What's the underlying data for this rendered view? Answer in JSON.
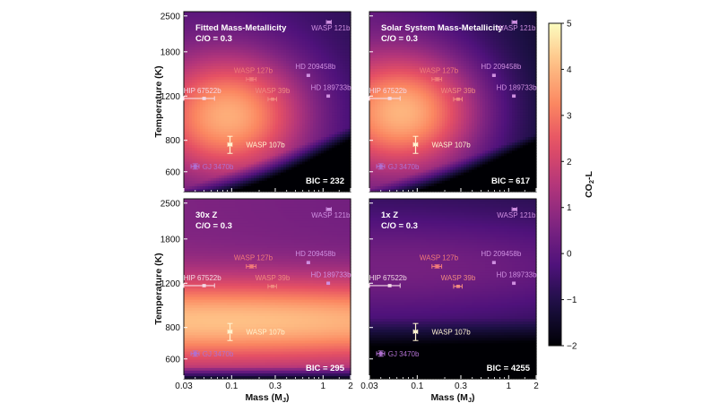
{
  "chart_data": {
    "type": "heatmap",
    "layout": "2x2 grid of panels sharing axes and one colorbar",
    "xlabel": "Mass (M",
    "xlabel_subscript": "J",
    "xlabel_close": ")",
    "ylabel": "Temperature (K)",
    "x_scale": "log",
    "y_scale": "log",
    "xlim": [
      0.03,
      2
    ],
    "ylim": [
      500,
      2600
    ],
    "xticks": [
      0.03,
      0.1,
      0.3,
      1,
      2
    ],
    "xtick_labels": [
      "0.03",
      "0.1",
      "0.3",
      "1",
      "2"
    ],
    "yticks": [
      600,
      800,
      1200,
      1800,
      2500
    ],
    "ytick_labels": [
      "600",
      "800",
      "1200",
      "1800",
      "2500"
    ],
    "colorbar": {
      "label": "CO",
      "label_subscript": "2",
      "label_suffix": "-L",
      "range": [
        -2,
        5
      ],
      "ticks": [
        -2,
        -1,
        0,
        1,
        2,
        3,
        4,
        5
      ],
      "tick_labels": [
        "−2",
        "−1",
        "0",
        "1",
        "2",
        "3",
        "4",
        "5"
      ],
      "colormap": "magma"
    },
    "panels": [
      {
        "title": [
          "Fitted Mass-Metallicity",
          "C/O = 0.3"
        ],
        "bic": "BIC = 232",
        "field": "fitted"
      },
      {
        "title": [
          "Solar System Mass-Metallicity",
          "C/O = 0.3"
        ],
        "bic": "BIC = 617",
        "field": "solar"
      },
      {
        "title": [
          "30x Z",
          "C/O = 0.3"
        ],
        "bic": "BIC = 295",
        "field": "z30"
      },
      {
        "title": [
          "1x Z",
          "C/O = 0.3"
        ],
        "bic": "BIC = 4255",
        "field": "z1"
      }
    ],
    "planets": [
      {
        "name": "WASP 121b",
        "mass": 1.16,
        "temp": 2360,
        "xerr": [
          0.07,
          0.07
        ],
        "yerr": [
          0,
          0
        ],
        "color": "#cf8fe0"
      },
      {
        "name": "WASP 127b",
        "mass": 0.165,
        "temp": 1400,
        "xerr": [
          0.02,
          0.02
        ],
        "yerr": [
          20,
          20
        ],
        "color": "#f07a7a"
      },
      {
        "name": "HD 209458b",
        "mass": 0.69,
        "temp": 1450,
        "xerr": [
          0.03,
          0.03
        ],
        "yerr": [
          0,
          0
        ],
        "color": "#cf8fe0"
      },
      {
        "name": "HD 189733b",
        "mass": 1.14,
        "temp": 1200,
        "xerr": [
          0.05,
          0.05
        ],
        "yerr": [
          0,
          0
        ],
        "color": "#cf8fe0"
      },
      {
        "name": "WASP 39b",
        "mass": 0.28,
        "temp": 1166,
        "xerr": [
          0.03,
          0.03
        ],
        "yerr": [
          0,
          0
        ],
        "color": "#f08a80"
      },
      {
        "name": "HIP 67522b",
        "mass": 0.05,
        "temp": 1174,
        "xerr": [
          0.02,
          0.015
        ],
        "yerr": [
          0,
          0
        ],
        "color": "#f3d9e6"
      },
      {
        "name": "WASP 107b",
        "mass": 0.096,
        "temp": 770,
        "xerr": [
          0.005,
          0.005
        ],
        "yerr": [
          60,
          60
        ],
        "color": "#fff4d0"
      },
      {
        "name": "GJ 3470b",
        "mass": 0.04,
        "temp": 630,
        "xerr": [
          0.004,
          0.004
        ],
        "yerr": [
          15,
          15
        ],
        "color": "#b070d0"
      }
    ]
  }
}
